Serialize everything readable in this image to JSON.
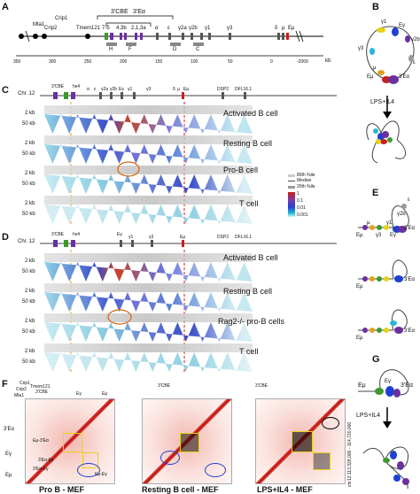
{
  "panels": {
    "A": "A",
    "B": "B",
    "C": "C",
    "D": "D",
    "E": "E",
    "F": "F",
    "G": "G"
  },
  "panelA": {
    "top_labels": [
      "3'CBE",
      "3'Eα"
    ],
    "genes": [
      "Mta1",
      "Crip1",
      "Crip2",
      "Tmem121",
      "7-5",
      "4,3b",
      "2,1,3a",
      "α",
      "ε",
      "γ2a",
      "γ2b",
      "γ1",
      "γ3",
      "δ",
      "μ",
      "Eμ"
    ],
    "segment_labels": [
      "H",
      "F",
      "D",
      "C"
    ],
    "axis_ticks": [
      "350",
      "300",
      "250",
      "200",
      "150",
      "100",
      "50",
      "0",
      "-2000"
    ],
    "axis_unit": "kb"
  },
  "panelC": {
    "chr_label": "Chr. 12",
    "feature_labels": [
      "3'CBE",
      "hs4",
      "α",
      "ε",
      "γ2a",
      "γ2b",
      "Eγ",
      "γ1",
      "γ3",
      "δ",
      "μ",
      "Eμ",
      "DSP2",
      "DFL16.1"
    ],
    "row_labels": [
      "Activated B cell",
      "Resting B cell",
      "Pro-B cell",
      "T cell"
    ],
    "scale_labels": [
      "2 kb",
      "50 kb"
    ],
    "side_label": "Scale Contact",
    "legend": [
      "80th %ile",
      "Median",
      "20th %ile",
      "1",
      "0.1",
      "0.01",
      "0.001"
    ]
  },
  "panelD": {
    "chr_label": "Chr. 12",
    "feature_labels": [
      "3'CBE",
      "hs4",
      "Eγ",
      "γ1",
      "γ3",
      "Eμ",
      "DSP2",
      "DFL16.1"
    ],
    "row_labels": [
      "Activated B cell",
      "Resting B cell",
      "Rag2-/- pro-B cells",
      "T cell"
    ],
    "scale_labels": [
      "2 kb",
      "50 kb"
    ],
    "side_label": "Scale Contact"
  },
  "panelB": {
    "labels": [
      "γ1",
      "Eγ",
      "γ2b",
      "γ3",
      "ε",
      "μ",
      "Eμ",
      "3'Eα"
    ],
    "arrow_label": "LPS+IL4"
  },
  "panelE": {
    "labels": [
      "ε",
      "γ2b",
      "μ",
      "γ3",
      "γ1",
      "3'Eα",
      "Eμ",
      "Eγ",
      "3'Eα",
      "Eμ",
      "3'Eα",
      "Eμ"
    ]
  },
  "panelG": {
    "labels": [
      "Eμ",
      "Eγ",
      "3'Eα"
    ],
    "arrow_label": "LPS+IL4"
  },
  "panelF": {
    "top_labels": [
      "Crip1",
      "Tmem121",
      "Crip2",
      "3'CBE",
      "Mta1",
      "Eγ",
      "Eμ",
      "3'CBE",
      "3'CBE"
    ],
    "left_labels": [
      "3'Eα",
      "Eγ",
      "Eμ"
    ],
    "inner_labels": [
      "Eμ-3'Eα",
      "3'Eα-Eγ",
      "3'Eα-Eγ",
      "Eμ-Eγ"
    ],
    "right_axis": "chr12:113,328,000 - 114,720,000",
    "captions": [
      "Pro B - MEF",
      "Resting B cell - MEF",
      "LPS+IL4 - MEF"
    ]
  },
  "colors": {
    "purple": "#6a2fa0",
    "green": "#3c9a2c",
    "blue": "#1f3fd0",
    "red": "#c8201a",
    "orange": "#e0a020",
    "yellow": "#e7d21a",
    "grey": "#9a9a9a",
    "cyan": "#2ab6d6"
  }
}
